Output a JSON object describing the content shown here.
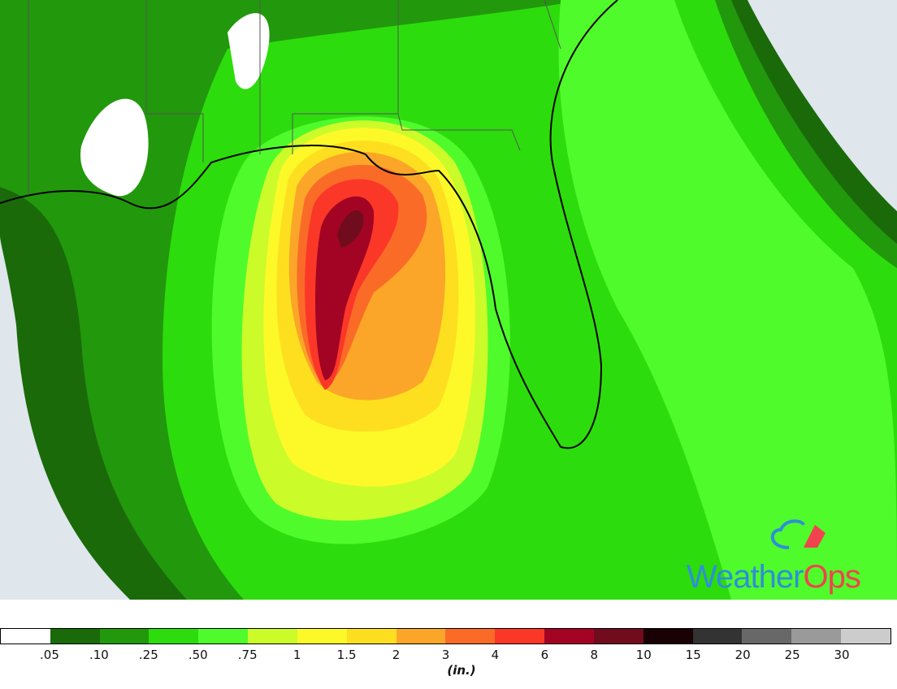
{
  "map": {
    "colors": {
      "ocean": "#dfe6ec",
      "land_nodata": "#ffffff",
      "coastline": "#000000",
      "border": "#555555"
    }
  },
  "logo": {
    "part1": "Weather",
    "part2": "Ops",
    "brand_blue": "#2e8fd8",
    "brand_red": "#f0434e"
  },
  "legend": {
    "units": "(in.)",
    "colors": [
      "#ffffff",
      "#1a6a0a",
      "#22980c",
      "#2ddc0c",
      "#50fb2b",
      "#ccfb2a",
      "#fdf928",
      "#fddf20",
      "#fba628",
      "#fb6b28",
      "#fb3728",
      "#a30423",
      "#700c1e",
      "#1a0104",
      "#333333",
      "#686868",
      "#9a9a9a",
      "#cccccc"
    ],
    "labels": [
      ".05",
      ".10",
      ".25",
      ".50",
      ".75",
      "1",
      "1.5",
      "2",
      "3",
      "4",
      "6",
      "8",
      "10",
      "15",
      "20",
      "25",
      "30"
    ]
  }
}
